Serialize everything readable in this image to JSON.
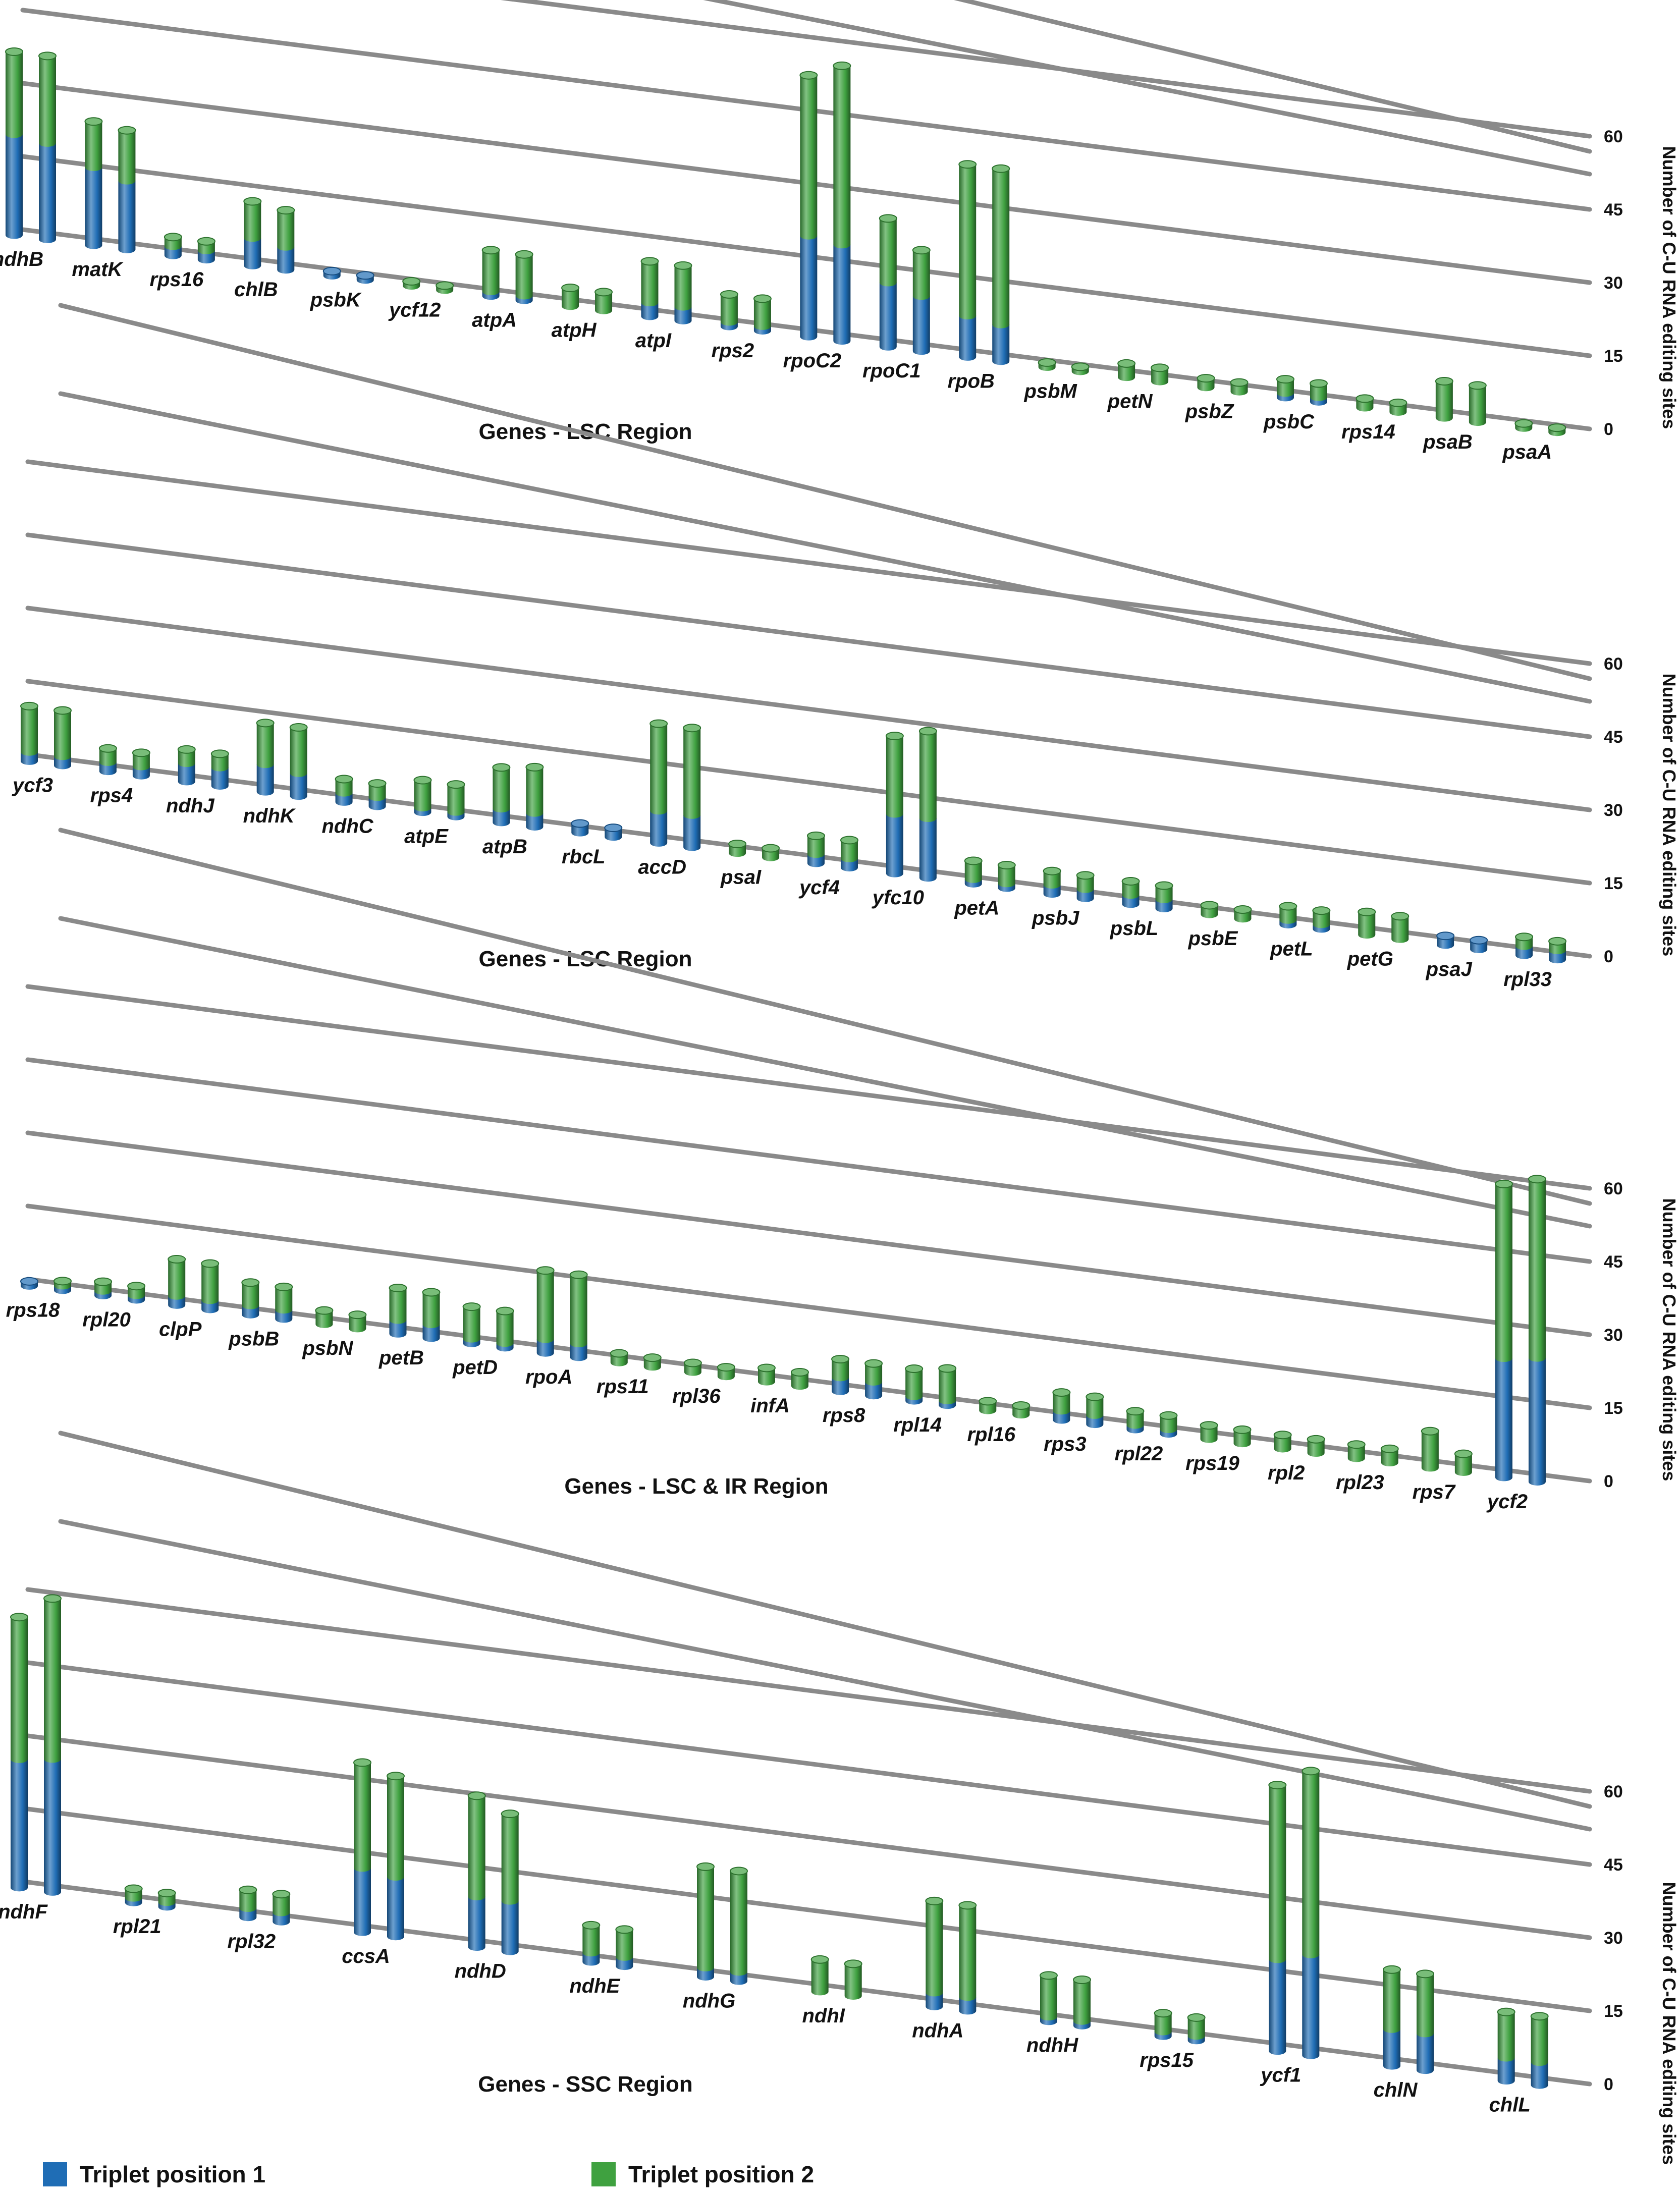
{
  "colors": {
    "position1": "#1f6db5",
    "position2": "#3fa140",
    "grid": "#8a8a8a"
  },
  "legend": {
    "position1": "Triplet position 1",
    "position2": "Triplet position 2"
  },
  "chart_data": [
    {
      "type": "bar",
      "stacked": true,
      "xlabel": "Genes - LSC Region",
      "ylabel": "Number of C-U RNA editing sites",
      "ylim": [
        0,
        60
      ],
      "yticks": [
        0,
        15,
        30,
        45,
        60
      ],
      "categories": [
        "ndhB",
        "matK",
        "rps16",
        "chlB",
        "psbK",
        "ycf12",
        "atpA",
        "atpH",
        "atpI",
        "rps2",
        "rpoC2",
        "rpoC1",
        "rpoB",
        "psbM",
        "petN",
        "psbZ",
        "psbC",
        "rps14",
        "psaB",
        "psaA"
      ],
      "series": [
        {
          "name": "Triplet position 1",
          "values": [
            [
              22,
              21
            ],
            [
              17,
              15
            ],
            [
              2,
              2
            ],
            [
              6,
              5
            ],
            [
              1,
              1
            ],
            [
              0,
              0
            ],
            [
              1,
              1
            ],
            [
              0,
              0
            ],
            [
              3,
              3
            ],
            [
              1,
              1
            ],
            [
              22,
              21
            ],
            [
              14,
              12
            ],
            [
              9,
              8
            ],
            [
              0,
              0
            ],
            [
              0,
              0
            ],
            [
              0,
              0
            ],
            [
              1,
              1
            ],
            [
              0,
              0
            ],
            [
              0,
              0
            ],
            [
              0,
              0
            ]
          ]
        },
        {
          "name": "Triplet position 2",
          "values": [
            [
              18,
              19
            ],
            [
              10,
              11
            ],
            [
              2,
              2
            ],
            [
              8,
              8
            ],
            [
              0,
              0
            ],
            [
              1,
              1
            ],
            [
              9,
              9
            ],
            [
              4,
              4
            ],
            [
              9,
              9
            ],
            [
              6,
              6
            ],
            [
              35,
              39
            ],
            [
              14,
              10
            ],
            [
              33,
              34
            ],
            [
              1,
              1
            ],
            [
              3,
              3
            ],
            [
              2,
              2
            ],
            [
              3,
              3
            ],
            [
              2,
              2
            ],
            [
              8,
              8
            ],
            [
              1,
              1
            ]
          ]
        }
      ]
    },
    {
      "type": "bar",
      "stacked": true,
      "xlabel": "Genes - LSC Region",
      "ylabel": "Number of C-U RNA editing sites",
      "ylim": [
        0,
        60
      ],
      "yticks": [
        0,
        15,
        30,
        45,
        60
      ],
      "categories": [
        "ycf3",
        "rps4",
        "ndhJ",
        "ndhK",
        "ndhC",
        "atpE",
        "atpB",
        "rbcL",
        "accD",
        "psaI",
        "ycf4",
        "yfc10",
        "petA",
        "psbJ",
        "psbL",
        "psbE",
        "petL",
        "petG",
        "psaJ",
        "rpl33"
      ],
      "series": [
        {
          "name": "Triplet position 1",
          "values": [
            [
              2,
              2
            ],
            [
              2,
              2
            ],
            [
              4,
              4
            ],
            [
              6,
              5
            ],
            [
              2,
              2
            ],
            [
              1,
              1
            ],
            [
              3,
              3
            ],
            [
              2,
              2
            ],
            [
              7,
              7
            ],
            [
              0,
              0
            ],
            [
              2,
              2
            ],
            [
              13,
              13
            ],
            [
              1,
              1
            ],
            [
              2,
              2
            ],
            [
              2,
              2
            ],
            [
              0,
              0
            ],
            [
              1,
              1
            ],
            [
              0,
              0
            ],
            [
              2,
              2
            ],
            [
              2,
              2
            ]
          ]
        },
        {
          "name": "Triplet position 2",
          "values": [
            [
              10,
              10
            ],
            [
              3,
              3
            ],
            [
              3,
              3
            ],
            [
              9,
              10
            ],
            [
              3,
              3
            ],
            [
              6,
              6
            ],
            [
              9,
              10
            ],
            [
              0,
              0
            ],
            [
              19,
              19
            ],
            [
              2,
              2
            ],
            [
              4,
              4
            ],
            [
              17,
              19
            ],
            [
              4,
              4
            ],
            [
              3,
              3
            ],
            [
              3,
              3
            ],
            [
              2,
              2
            ],
            [
              3,
              3
            ],
            [
              5,
              5
            ],
            [
              0,
              0
            ],
            [
              2,
              2
            ]
          ]
        }
      ]
    },
    {
      "type": "bar",
      "stacked": true,
      "xlabel": "Genes - LSC & IR Region",
      "ylabel": "Number of C-U RNA editing sites",
      "ylim": [
        0,
        60
      ],
      "yticks": [
        0,
        15,
        30,
        45,
        60
      ],
      "categories": [
        "rps18",
        "rpl20",
        "clpP",
        "psbB",
        "psbN",
        "petB",
        "petD",
        "rpoA",
        "rps11",
        "rpl36",
        "infA",
        "rps8",
        "rpl14",
        "rpl16",
        "rps3",
        "rpl22",
        "rps19",
        "rpl2",
        "rpl23",
        "rps7",
        "ycf2"
      ],
      "series": [
        {
          "name": "Triplet position 1",
          "values": [
            [
              1,
              1
            ],
            [
              1,
              1
            ],
            [
              2,
              2
            ],
            [
              2,
              2
            ],
            [
              0,
              0
            ],
            [
              3,
              3
            ],
            [
              1,
              1
            ],
            [
              3,
              3
            ],
            [
              0,
              0
            ],
            [
              0,
              0
            ],
            [
              0,
              0
            ],
            [
              3,
              3
            ],
            [
              1,
              1
            ],
            [
              0,
              0
            ],
            [
              2,
              2
            ],
            [
              1,
              1
            ],
            [
              0,
              0
            ],
            [
              0,
              0
            ],
            [
              0,
              0
            ],
            [
              0,
              0
            ],
            [
              26,
              27
            ]
          ]
        },
        {
          "name": "Triplet position 2",
          "values": [
            [
              0,
              1
            ],
            [
              2,
              2
            ],
            [
              8,
              8
            ],
            [
              5,
              5
            ],
            [
              3,
              3
            ],
            [
              7,
              7
            ],
            [
              7,
              7
            ],
            [
              15,
              15
            ],
            [
              2,
              2
            ],
            [
              2,
              2
            ],
            [
              3,
              3
            ],
            [
              4,
              4
            ],
            [
              6,
              7
            ],
            [
              2,
              2
            ],
            [
              4,
              4
            ],
            [
              3,
              3
            ],
            [
              3,
              3
            ],
            [
              3,
              3
            ],
            [
              3,
              3
            ],
            [
              8,
              4
            ],
            [
              38,
              39
            ]
          ]
        }
      ]
    },
    {
      "type": "bar",
      "stacked": true,
      "xlabel": "Genes - SSC Region",
      "ylabel": "Number of C-U RNA editing sites",
      "ylim": [
        0,
        60
      ],
      "yticks": [
        0,
        15,
        30,
        45,
        60
      ],
      "categories": [
        "ndhF",
        "rpl21",
        "rpl32",
        "ccsA",
        "ndhD",
        "ndhE",
        "ndhG",
        "ndhI",
        "ndhA",
        "ndhH",
        "rps15",
        "ycf1",
        "chlN",
        "chlL"
      ],
      "series": [
        {
          "name": "Triplet position 1",
          "values": [
            [
              28,
              29
            ],
            [
              1,
              1
            ],
            [
              2,
              2
            ],
            [
              14,
              13
            ],
            [
              11,
              11
            ],
            [
              2,
              2
            ],
            [
              2,
              2
            ],
            [
              0,
              0
            ],
            [
              3,
              3
            ],
            [
              1,
              1
            ],
            [
              1,
              1
            ],
            [
              20,
              22
            ],
            [
              8,
              8
            ],
            [
              5,
              5
            ]
          ]
        },
        {
          "name": "Triplet position 2",
          "values": [
            [
              31,
              35
            ],
            [
              2,
              2
            ],
            [
              4,
              4
            ],
            [
              23,
              22
            ],
            [
              22,
              19
            ],
            [
              6,
              6
            ],
            [
              22,
              22
            ],
            [
              7,
              7
            ],
            [
              20,
              20
            ],
            [
              9,
              9
            ],
            [
              4,
              4
            ],
            [
              38,
              40
            ],
            [
              13,
              13
            ],
            [
              10,
              10
            ]
          ]
        }
      ]
    }
  ]
}
